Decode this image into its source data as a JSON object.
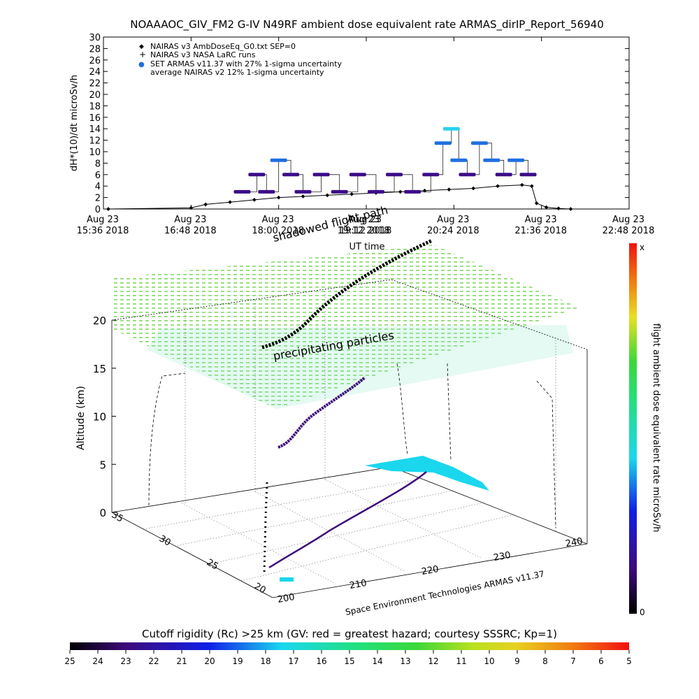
{
  "title": "NOAAAOC_GIV_FM2 G-IV   N49RF  ambient dose equivalent rate ARMAS_dirIP_Report_56940",
  "chart_data": [
    {
      "type": "scatter",
      "title": "NOAAAOC_GIV_FM2 G-IV   N49RF  ambient dose equivalent rate ARMAS_dirIP_Report_56940",
      "ylabel": "dH*(10)/dt microSv/h",
      "xlabel": "UT time",
      "ylim": [
        0,
        30
      ],
      "yticks": [
        "0",
        "2",
        "4",
        "6",
        "8",
        "10",
        "12",
        "14",
        "16",
        "18",
        "20",
        "22",
        "24",
        "26",
        "28",
        "30"
      ],
      "xticks": [
        {
          "date": "Aug 23",
          "time": "15:36 2018"
        },
        {
          "date": "Aug 23",
          "time": "16:48 2018"
        },
        {
          "date": "Aug 23",
          "time": "18:00 2018"
        },
        {
          "date": "Aug 23",
          "time": "19:12 2018"
        },
        {
          "date": "Aug 23",
          "time": "20:24 2018"
        },
        {
          "date": "Aug 23",
          "time": "21:36 2018"
        },
        {
          "date": "Aug 23",
          "time": "22:48 2018"
        }
      ],
      "xlim_minutes_since_1536": [
        0,
        432
      ],
      "legend": [
        {
          "symbol": "◆",
          "label": "NAIRAS v3 AmbDoseEq_G0.txt SEP=0"
        },
        {
          "symbol": "+",
          "label": "NAIRAS v3 NASA LaRC runs"
        },
        {
          "symbol": "●",
          "label": "SET ARMAS v11.37 with 27% 1-sigma uncertainty"
        },
        {
          "symbol": "",
          "label": "average NAIRAS v2 12% 1-sigma uncertainty"
        }
      ],
      "legend_placement": "top-left",
      "series": [
        {
          "name": "NAIRAS v3 AmbDoseEq_G0.txt SEP=0",
          "x": [
            "15:40",
            "16:48",
            "17:00",
            "17:20",
            "17:40",
            "18:00",
            "18:20",
            "18:40",
            "19:00",
            "19:20",
            "19:40",
            "20:00",
            "20:20",
            "20:40",
            "21:00",
            "21:20",
            "21:28",
            "21:32",
            "21:40",
            "21:50",
            "22:00"
          ],
          "y": [
            0,
            0.2,
            0.8,
            1.2,
            1.6,
            2.0,
            2.2,
            2.4,
            2.6,
            2.8,
            3.0,
            3.2,
            3.4,
            3.6,
            4.0,
            4.2,
            4.0,
            1.0,
            0.3,
            0.1,
            0
          ]
        },
        {
          "name": "SET ARMAS v11.37 with 27% 1-sigma uncertainty",
          "x": [
            "17:30",
            "17:42",
            "17:50",
            "18:00",
            "18:10",
            "18:20",
            "18:35",
            "18:50",
            "19:05",
            "19:20",
            "19:35",
            "19:50",
            "20:05",
            "20:15",
            "20:22",
            "20:28",
            "20:35",
            "20:45",
            "20:55",
            "21:05",
            "21:15",
            "21:25"
          ],
          "y": [
            3,
            6,
            3,
            8.5,
            6,
            3,
            6,
            3,
            6,
            3,
            6,
            3,
            6,
            11.5,
            14,
            8.5,
            6,
            11.5,
            8.5,
            6,
            8.5,
            6
          ]
        }
      ],
      "colors": {
        "armas_low": "#3c0c88",
        "armas_high": "#1f6fe0",
        "armas_peak": "#27d3ee",
        "nairas": "#000000"
      }
    },
    {
      "type": "scatter",
      "title": "shadowed flight path",
      "annotation": "precipitating particles",
      "zlabel": "Altitude (km)",
      "zticks": [
        "0",
        "5",
        "10",
        "15",
        "20"
      ],
      "xticks": [
        "200",
        "210",
        "220",
        "230",
        "240"
      ],
      "yticks": [
        "20",
        "25",
        "30",
        "35"
      ],
      "credit": "Space Environment Technologies ARMAS v11.37",
      "colorbar_label": "flight ambient dose equivalent rate microSv/h",
      "colorbar_top": "x",
      "colorbar_bottom": "0"
    }
  ],
  "bottom_colorbar": {
    "label": "Cutoff rigidity (Rc) >25 km (GV: red = greatest hazard; courtesy SSSRC; Kp=1)",
    "ticks": [
      "25",
      "24",
      "23",
      "22",
      "21",
      "20",
      "19",
      "18",
      "17",
      "16",
      "15",
      "14",
      "13",
      "12",
      "11",
      "10",
      "9",
      "8",
      "7",
      "6",
      "5"
    ]
  },
  "overlay": {
    "date": "Aug 23",
    "time": "19:12 2018",
    "axis_title": "UT time"
  }
}
